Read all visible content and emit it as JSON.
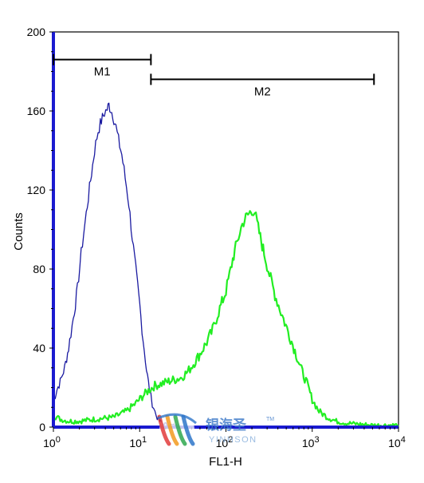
{
  "chart_data": {
    "type": "line",
    "title": "",
    "xlabel": "FL1-H",
    "ylabel": "Counts",
    "xscale": "log",
    "xlim": [
      1,
      10000
    ],
    "ylim": [
      0,
      200
    ],
    "x_ticks": [
      {
        "value": 1,
        "base": "10",
        "exp": "0"
      },
      {
        "value": 10,
        "base": "10",
        "exp": "1"
      },
      {
        "value": 100,
        "base": "10",
        "exp": "2"
      },
      {
        "value": 1000,
        "base": "10",
        "exp": "3"
      },
      {
        "value": 10000,
        "base": "10",
        "exp": "4"
      }
    ],
    "y_ticks": [
      "0",
      "40",
      "80",
      "120",
      "160",
      "200"
    ],
    "markers": [
      {
        "label": "M1",
        "x_start": 1,
        "x_end": 13.5,
        "y": 186
      },
      {
        "label": "M2",
        "x_start": 13.5,
        "x_end": 5200,
        "y": 176
      }
    ],
    "series": [
      {
        "color": "#1a1aa0",
        "x": [
          1.0,
          1.05,
          1.1,
          1.2,
          1.35,
          1.5,
          1.7,
          1.9,
          2.1,
          2.4,
          2.7,
          3.0,
          3.3,
          3.6,
          3.9,
          4.2,
          4.4,
          4.6,
          4.9,
          5.3,
          5.7,
          6.2,
          6.8,
          7.5,
          8.2,
          9.0,
          10.0,
          11.0,
          12.0,
          13.0,
          14.0,
          15.5,
          17.0,
          19.0,
          22.0,
          30.0,
          50.0,
          100.0,
          300.0,
          1000.0,
          10000.0
        ],
        "y": [
          15,
          16,
          19,
          23,
          30,
          40,
          55,
          70,
          88,
          108,
          125,
          140,
          150,
          155,
          159,
          161,
          163,
          161,
          158,
          152,
          145,
          138,
          126,
          113,
          96,
          80,
          62,
          44,
          29,
          19,
          12,
          6,
          3,
          1.5,
          1,
          0.5,
          0.5,
          0.3,
          0.2,
          0.2,
          0.2
        ]
      },
      {
        "color": "#22ee22",
        "x": [
          1.0,
          1.2,
          1.5,
          2.0,
          3.0,
          5.0,
          7.0,
          9.0,
          11.0,
          13.0,
          15.0,
          18.0,
          21.0,
          25.0,
          30.0,
          36.0,
          42.0,
          50.0,
          60.0,
          70.0,
          80.0,
          90.0,
          100.0,
          110.0,
          120.0,
          130.0,
          140.0,
          150.0,
          160.0,
          170.0,
          185.0,
          200.0,
          215.0,
          230.0,
          250.0,
          270.0,
          300.0,
          330.0,
          370.0,
          420.0,
          480.0,
          560.0,
          650.0,
          750.0,
          870.0,
          1000.0,
          1200.0,
          1500.0,
          1900.0,
          2500.0,
          3500.0,
          5000.0,
          7000.0,
          10000.0
        ],
        "y": [
          6,
          4,
          3,
          3,
          4,
          5,
          8,
          12,
          16,
          19,
          21,
          22,
          23,
          24,
          25,
          28,
          32,
          37,
          43,
          49,
          57,
          63,
          69,
          77,
          85,
          91,
          96,
          101,
          104,
          106,
          108,
          110,
          109,
          103,
          96,
          90,
          82,
          75,
          67,
          60,
          53,
          45,
          37,
          29,
          22,
          14,
          8,
          5,
          3,
          2,
          1.5,
          1,
          1,
          1
        ]
      }
    ]
  },
  "watermark": {
    "text_cn": "银海圣",
    "tm": "TM",
    "text_en": "YINHSON",
    "colors": [
      "#e23b3b",
      "#f29a1f",
      "#2fa84f",
      "#2e76c9"
    ]
  }
}
